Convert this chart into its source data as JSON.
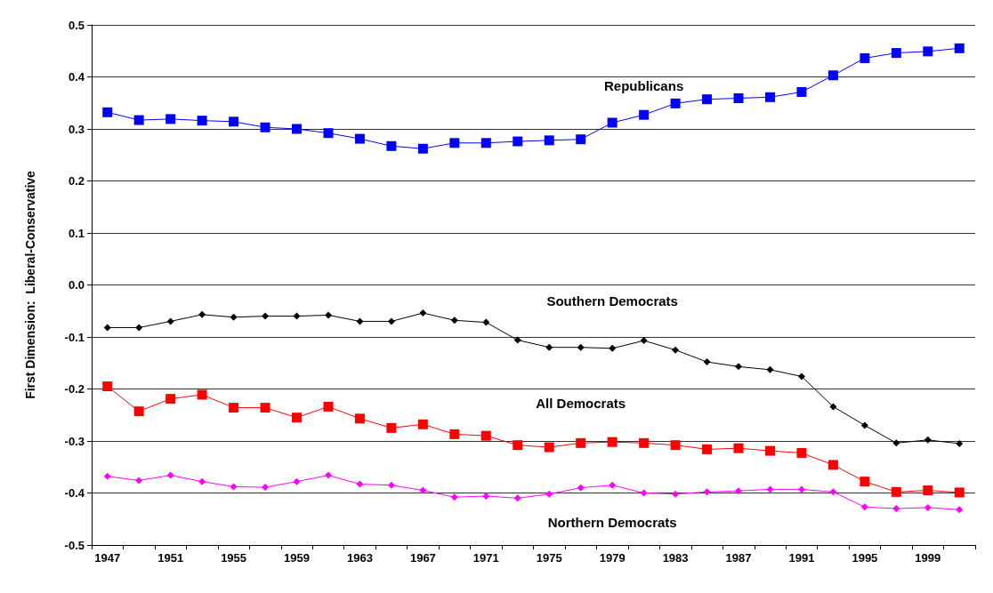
{
  "chart_data": {
    "type": "line",
    "ylabel": "First Dimension:  Liberal-Conservative",
    "categories": [
      "1947",
      null,
      "1951",
      null,
      "1955",
      null,
      "1959",
      null,
      "1963",
      null,
      "1967",
      null,
      "1971",
      null,
      "1975",
      null,
      "1979",
      null,
      "1983",
      null,
      "1987",
      null,
      "1991",
      null,
      "1995",
      null,
      "1999",
      null
    ],
    "ylim": [
      -0.5,
      0.5
    ],
    "yticks": [
      -0.5,
      -0.4,
      -0.3,
      -0.2,
      -0.1,
      {
        "value": 0,
        "label": "0.0"
      },
      0.1,
      0.2,
      0.3,
      0.4,
      0.5
    ],
    "grid": "y",
    "legend": false,
    "series": [
      {
        "name": "Republicans",
        "color": "#0000ff",
        "marker": "square",
        "values": [
          0.332,
          0.317,
          0.319,
          0.316,
          0.314,
          0.303,
          0.3,
          0.292,
          0.281,
          0.267,
          0.262,
          0.273,
          0.273,
          0.276,
          0.278,
          0.28,
          0.312,
          0.327,
          0.349,
          0.357,
          0.359,
          0.361,
          0.371,
          0.403,
          0.436,
          0.446,
          0.449,
          0.455
        ]
      },
      {
        "name": "Southern Democrats",
        "color": "#000000",
        "marker": "diamond",
        "values": [
          -0.082,
          -0.082,
          -0.07,
          -0.057,
          -0.062,
          -0.06,
          -0.06,
          -0.058,
          -0.07,
          -0.07,
          -0.054,
          -0.068,
          -0.072,
          -0.106,
          -0.12,
          -0.12,
          -0.122,
          -0.107,
          -0.125,
          -0.148,
          -0.157,
          -0.163,
          -0.176,
          -0.234,
          -0.27,
          -0.304,
          -0.298,
          -0.305
        ]
      },
      {
        "name": "All Democrats",
        "color": "#ff0000",
        "marker": "square",
        "values": [
          -0.195,
          -0.243,
          -0.219,
          -0.211,
          -0.236,
          -0.236,
          -0.255,
          -0.234,
          -0.257,
          -0.275,
          -0.268,
          -0.287,
          -0.29,
          -0.308,
          -0.312,
          -0.304,
          -0.302,
          -0.304,
          -0.308,
          -0.316,
          -0.314,
          -0.319,
          -0.323,
          -0.346,
          -0.378,
          -0.398,
          -0.395,
          -0.399
        ]
      },
      {
        "name": "Northern Democrats",
        "color": "#ff00ff",
        "marker": "diamond",
        "values": [
          -0.368,
          -0.376,
          -0.366,
          -0.378,
          -0.388,
          -0.389,
          -0.378,
          -0.366,
          -0.383,
          -0.385,
          -0.395,
          -0.408,
          -0.406,
          -0.41,
          -0.402,
          -0.39,
          -0.385,
          -0.4,
          -0.402,
          -0.398,
          -0.396,
          -0.393,
          -0.393,
          -0.398,
          -0.427,
          -0.43,
          -0.428,
          -0.432
        ]
      }
    ]
  }
}
